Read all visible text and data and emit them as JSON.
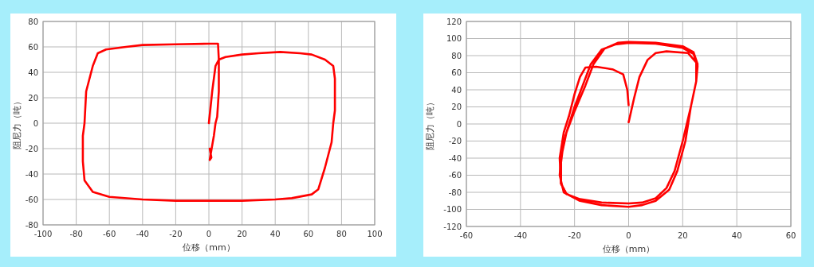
{
  "chart_data": [
    {
      "type": "line",
      "xlabel": "位移（mm）",
      "ylabel": "阻尼力（吨）",
      "xlim": [
        -100,
        100
      ],
      "ylim": [
        -80,
        80
      ],
      "xticks": [
        -100,
        -80,
        -60,
        -40,
        -20,
        0,
        20,
        40,
        60,
        80,
        100
      ],
      "yticks": [
        -80,
        -60,
        -40,
        -20,
        0,
        20,
        40,
        60,
        80
      ],
      "grid": true,
      "series": [
        {
          "color": "#ff0000",
          "x": [
            0,
            2,
            4,
            6,
            10,
            20,
            30,
            43,
            55,
            62,
            70,
            75,
            76,
            76,
            75,
            74,
            70,
            66,
            62,
            50,
            40,
            20,
            0,
            -20,
            -40,
            -60,
            -70,
            -75,
            -76,
            -76,
            -75,
            -74,
            -70,
            -67,
            -62,
            -50,
            -40,
            -20,
            0,
            5.5,
            6,
            6,
            5,
            4,
            3,
            1,
            0.5,
            1.5,
            0.5
          ],
          "values": [
            0,
            25,
            45,
            50,
            52,
            54,
            55,
            56,
            55,
            54,
            50,
            45,
            35,
            10,
            0,
            -15,
            -35,
            -52,
            -56,
            -59,
            -60,
            -61,
            -61,
            -61,
            -60,
            -58,
            -54,
            -45,
            -30,
            -10,
            0,
            25,
            45,
            55,
            58,
            60,
            61.5,
            62,
            62.5,
            62.5,
            50,
            25,
            5,
            0,
            -10,
            -25,
            -29,
            -27,
            -20
          ]
        }
      ]
    },
    {
      "type": "line",
      "xlabel": "位移（mm）",
      "ylabel": "阻尼力（吨）",
      "xlim": [
        -60,
        60
      ],
      "ylim": [
        -120,
        120
      ],
      "xticks": [
        -60,
        -40,
        -20,
        0,
        20,
        40,
        60
      ],
      "yticks": [
        -120,
        -100,
        -80,
        -60,
        -40,
        -20,
        0,
        20,
        40,
        60,
        80,
        100,
        120
      ],
      "grid": true,
      "series": [
        {
          "color": "#ff0000",
          "x": [
            0,
            2,
            4,
            7,
            10,
            14,
            22,
            25,
            25,
            23,
            20,
            17,
            14,
            10,
            5,
            0,
            -10,
            -18,
            -23,
            -25,
            -25,
            -24,
            -22,
            -20,
            -17,
            -14,
            -10,
            -5,
            0,
            10,
            20,
            24,
            25.5,
            25,
            23,
            21,
            18,
            15,
            10,
            5,
            0,
            -10,
            -18,
            -24,
            -25.5,
            -25,
            -23,
            -20,
            -16,
            -13,
            -9,
            -4,
            0,
            10,
            20,
            24,
            25.5
          ],
          "values": [
            2,
            30,
            55,
            75,
            83,
            85,
            83,
            72,
            50,
            20,
            -20,
            -55,
            -75,
            -87,
            -92,
            -93,
            -92,
            -88,
            -82,
            -70,
            -45,
            -20,
            0,
            20,
            45,
            70,
            87,
            93,
            95,
            94,
            89,
            82,
            68,
            50,
            20,
            -20,
            -55,
            -77,
            -90,
            -95,
            -97,
            -95,
            -90,
            -80,
            -60,
            -40,
            -10,
            15,
            45,
            70,
            88,
            95,
            96,
            95,
            91,
            84,
            70
          ]
        },
        {
          "color": "#ff0000",
          "x": [
            0,
            -0.5,
            -2,
            -6,
            -12,
            -16,
            -18,
            -20,
            -22,
            -24,
            -25.5,
            -25,
            -23
          ],
          "values": [
            22,
            40,
            58,
            64,
            67,
            66,
            55,
            35,
            10,
            -10,
            -40,
            -70,
            -82
          ]
        }
      ]
    }
  ]
}
